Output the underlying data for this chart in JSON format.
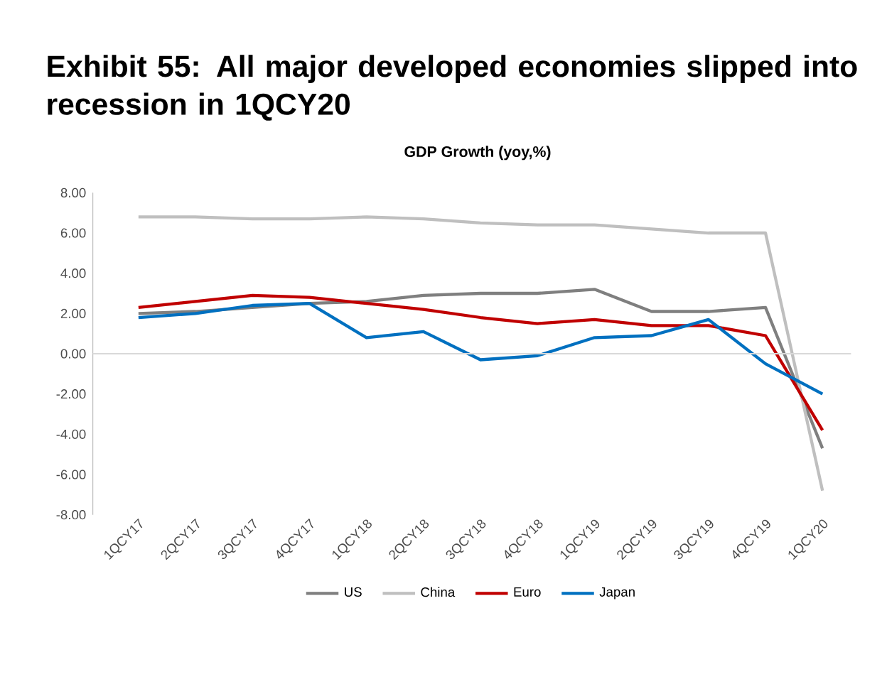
{
  "chart_data": {
    "type": "line",
    "title": "Exhibit 55:  All major developed economies slipped into recession in 1QCY20",
    "subtitle": "GDP Growth (yoy,%)",
    "categories": [
      "1QCY17",
      "2QCY17",
      "3QCY17",
      "4QCY17",
      "1QCY18",
      "2QCY18",
      "3QCY18",
      "4QCY18",
      "1QCY19",
      "2QCY19",
      "3QCY19",
      "4QCY19",
      "1QCY20"
    ],
    "series": [
      {
        "name": "US",
        "color": "#7f7f7f",
        "values": [
          2.0,
          2.1,
          2.3,
          2.5,
          2.6,
          2.9,
          3.0,
          3.0,
          3.2,
          2.1,
          2.1,
          2.3,
          -4.7
        ]
      },
      {
        "name": "China",
        "color": "#bfbfbf",
        "values": [
          6.8,
          6.8,
          6.7,
          6.7,
          6.8,
          6.7,
          6.5,
          6.4,
          6.4,
          6.2,
          6.0,
          6.0,
          -6.8
        ]
      },
      {
        "name": "Euro",
        "color": "#c00000",
        "values": [
          2.3,
          2.6,
          2.9,
          2.8,
          2.5,
          2.2,
          1.8,
          1.5,
          1.7,
          1.4,
          1.4,
          0.9,
          -3.8
        ]
      },
      {
        "name": "Japan",
        "color": "#0070c0",
        "values": [
          1.8,
          2.0,
          2.4,
          2.5,
          0.8,
          1.1,
          -0.3,
          -0.1,
          0.8,
          0.9,
          1.7,
          -0.5,
          -2.0
        ]
      }
    ],
    "ylim": [
      -8,
      8
    ],
    "yticks": [
      {
        "value": -8,
        "label": "-8.00"
      },
      {
        "value": -6,
        "label": "-6.00"
      },
      {
        "value": -4,
        "label": "-4.00"
      },
      {
        "value": -2,
        "label": "-2.00"
      },
      {
        "value": 0,
        "label": "0.00"
      },
      {
        "value": 2,
        "label": "2.00"
      },
      {
        "value": 4,
        "label": "4.00"
      },
      {
        "value": 6,
        "label": "6.00"
      },
      {
        "value": 8,
        "label": "8.00"
      }
    ],
    "ref_lines": [
      {
        "axis": "y",
        "value": 0,
        "color": "#d9d9d9"
      }
    ],
    "grid": false,
    "legend": "bottom",
    "marker": "none",
    "line_style": "solid"
  }
}
